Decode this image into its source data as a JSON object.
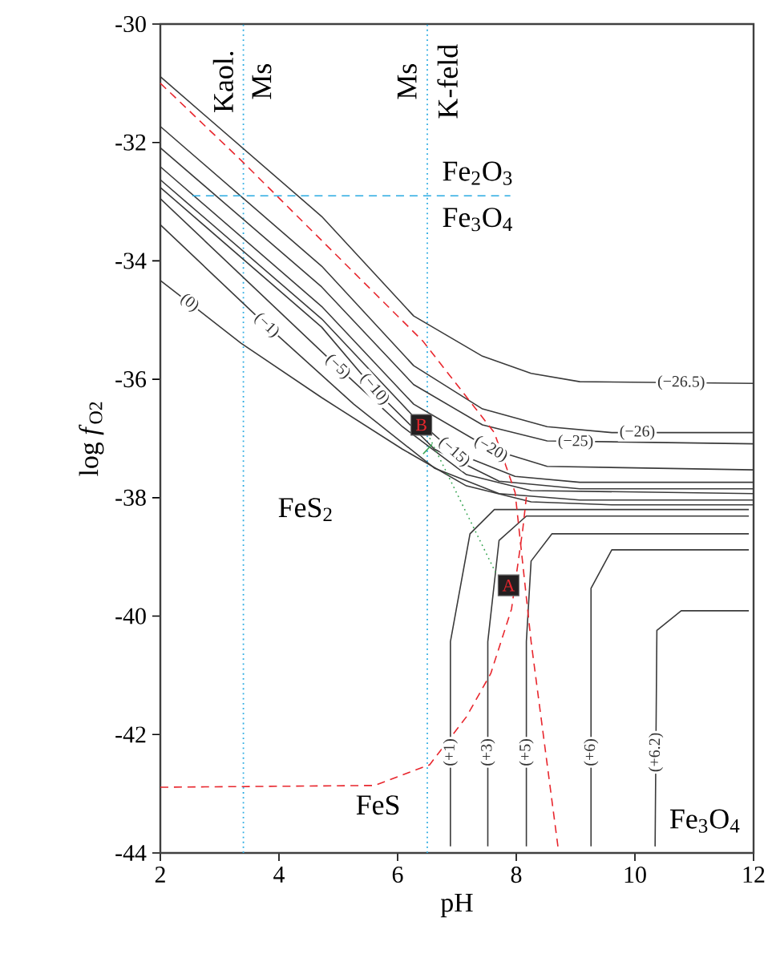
{
  "chart_data": {
    "type": "line",
    "xlabel": "pH",
    "ylabel": "log *f*$_{O2}$",
    "xlim": [
      2,
      12
    ],
    "ylim": [
      -44,
      -30
    ],
    "xticks": [
      2,
      4,
      6,
      8,
      10,
      12
    ],
    "yticks": [
      -44,
      -42,
      -40,
      -38,
      -36,
      -34,
      -32,
      -30
    ],
    "marker": "none",
    "series": [
      {
        "color": "#3a3a3a",
        "x": [
          2,
          4.72,
          6.27,
          7.43,
          8.25,
          9.07,
          12
        ],
        "values": [
          -30.89,
          -33.25,
          -34.93,
          -35.61,
          -35.9,
          -36.04,
          -36.07
        ]
      },
      {
        "color": "#3a3a3a",
        "x": [
          2,
          4.72,
          6.27,
          7.43,
          8.52,
          9.61,
          12
        ],
        "values": [
          -31.73,
          -34.09,
          -35.77,
          -36.5,
          -36.8,
          -36.9,
          -36.9
        ]
      },
      {
        "color": "#3a3a3a",
        "x": [
          2,
          4.72,
          6.27,
          7.43,
          8.52,
          12
        ],
        "values": [
          -32.09,
          -34.44,
          -36.09,
          -36.77,
          -37.04,
          -37.09
        ]
      },
      {
        "color": "#3a3a3a",
        "x": [
          2,
          4.72,
          6.27,
          7.57,
          8.52,
          12
        ],
        "values": [
          -32.41,
          -34.77,
          -36.42,
          -37.18,
          -37.47,
          -37.53
        ]
      },
      {
        "color": "#3a3a3a",
        "x": [
          2,
          4.72,
          6.27,
          6.95,
          7.98,
          9.07,
          12
        ],
        "values": [
          -32.63,
          -34.98,
          -36.63,
          -37.23,
          -37.64,
          -37.74,
          -37.74
        ]
      },
      {
        "color": "#3a3a3a",
        "x": [
          2,
          4.72,
          5.61,
          6.62,
          7.71,
          9.07,
          12
        ],
        "values": [
          -32.76,
          -35.12,
          -36.17,
          -37.18,
          -37.72,
          -37.85,
          -37.85
        ]
      },
      {
        "color": "#3a3a3a",
        "x": [
          2,
          4.99,
          6.08,
          7.16,
          8.25,
          12
        ],
        "values": [
          -32.95,
          -35.79,
          -36.8,
          -37.61,
          -37.88,
          -37.93
        ]
      },
      {
        "color": "#3a3a3a",
        "x": [
          2,
          3.79,
          5.26,
          6.62,
          7.71,
          9.07,
          12
        ],
        "values": [
          -33.39,
          -35.09,
          -36.42,
          -37.5,
          -37.93,
          -38.04,
          -38.04
        ]
      },
      {
        "color": "#3a3a3a",
        "x": [
          2,
          3.36,
          4.72,
          6.08,
          7.16,
          8.25,
          9.61,
          12
        ],
        "values": [
          -34.33,
          -35.39,
          -36.31,
          -37.18,
          -37.8,
          -38.07,
          -38.12,
          -38.12
        ]
      },
      {
        "color": "#3a3a3a",
        "x": [
          6.89,
          6.89,
          7.22,
          7.63,
          11.92
        ],
        "values": [
          -43.89,
          -40.43,
          -38.61,
          -38.2,
          -38.2
        ]
      },
      {
        "color": "#3a3a3a",
        "x": [
          7.52,
          7.52,
          7.71,
          8.17,
          11.92
        ],
        "values": [
          -43.89,
          -40.43,
          -38.72,
          -38.31,
          -38.31
        ]
      },
      {
        "color": "#3a3a3a",
        "x": [
          8.17,
          8.17,
          8.25,
          8.6,
          11.92
        ],
        "values": [
          -43.89,
          -40.43,
          -39.07,
          -38.61,
          -38.61
        ]
      },
      {
        "color": "#3a3a3a",
        "x": [
          9.26,
          9.26,
          9.61,
          11.92
        ],
        "values": [
          -43.89,
          -39.53,
          -38.88,
          -38.88
        ]
      },
      {
        "color": "#3a3a3a",
        "x": [
          10.34,
          10.37,
          10.78,
          11.92
        ],
        "values": [
          -43.89,
          -40.24,
          -39.91,
          -39.91
        ]
      },
      {
        "color": "#e8262d",
        "line_style": "dashed",
        "x": [
          2,
          3.36,
          6.43,
          7.63,
          7.98,
          8.25,
          8.71
        ],
        "values": [
          -31.0,
          -32.3,
          -35.36,
          -36.9,
          -37.91,
          -40.43,
          -43.95
        ]
      },
      {
        "color": "#e8262d",
        "line_style": "dashed",
        "x": [
          2,
          5.61,
          6.54,
          7.16,
          7.57,
          7.92,
          8.11,
          8.17
        ],
        "values": [
          -42.89,
          -42.86,
          -42.51,
          -41.7,
          -40.97,
          -39.88,
          -38.53,
          -37.99
        ]
      },
      {
        "color": "#29abe2",
        "line_style": "dashed",
        "x": [
          2.54,
          7.9
        ],
        "values": [
          -32.9,
          -32.9
        ]
      },
      {
        "color": "#3aa655",
        "line_style": "dotted",
        "x": [
          6.54,
          7.65
        ],
        "values": [
          -36.99,
          -39.26
        ]
      },
      {
        "color": "#3aa655",
        "x": [
          6.43,
          6.58
        ],
        "values": [
          -37.26,
          -37.1
        ]
      },
      {
        "type": "scatter",
        "marker": "square",
        "name": "B",
        "color": "#231f20",
        "x": [
          6.4
        ],
        "values": [
          -36.77
        ]
      },
      {
        "type": "scatter",
        "marker": "square",
        "name": "A",
        "color": "#231f20",
        "x": [
          7.87
        ],
        "values": [
          -39.48
        ]
      }
    ],
    "ref_lines": [
      {
        "axis": "x",
        "value": 3.4,
        "label": null,
        "color": "#29abe2",
        "line_style": "dotted"
      },
      {
        "axis": "x",
        "value": 6.5,
        "label": null,
        "color": "#29abe2",
        "line_style": "dotted"
      }
    ],
    "annotations": [
      {
        "text": "(0)",
        "x": 2.49,
        "y": -34.71
      },
      {
        "text": "(−1)",
        "x": 3.79,
        "y": -35.09
      },
      {
        "text": "(−5)",
        "x": 4.99,
        "y": -35.79
      },
      {
        "text": "(−10)",
        "x": 5.61,
        "y": -36.17
      },
      {
        "text": "(−15)",
        "x": 6.95,
        "y": -37.23
      },
      {
        "text": "(−20)",
        "x": 7.57,
        "y": -37.18
      },
      {
        "text": "(−25)",
        "x": 9.0,
        "y": -37.06
      },
      {
        "text": "(−26)",
        "x": 10.04,
        "y": -36.9
      },
      {
        "text": "(−26.5)",
        "x": 10.78,
        "y": -36.06
      },
      {
        "text": "(+1)",
        "x": 6.89,
        "y": -42.3
      },
      {
        "text": "(+3)",
        "x": 7.52,
        "y": -42.3
      },
      {
        "text": "(+5)",
        "x": 8.17,
        "y": -42.3
      },
      {
        "text": "(+6)",
        "x": 9.26,
        "y": -42.3
      },
      {
        "text": "(+6.2)",
        "x": 10.353,
        "y": -42.3
      },
      "Kaol.",
      "Ms",
      "Ms",
      "K-feld",
      "Fe$_{2}$O$_{3}$",
      "Fe$_{3}$O$_{4}$",
      "FeS$_{2}$",
      "FeS",
      "Fe$_{3}$O$_{4}$"
    ]
  }
}
